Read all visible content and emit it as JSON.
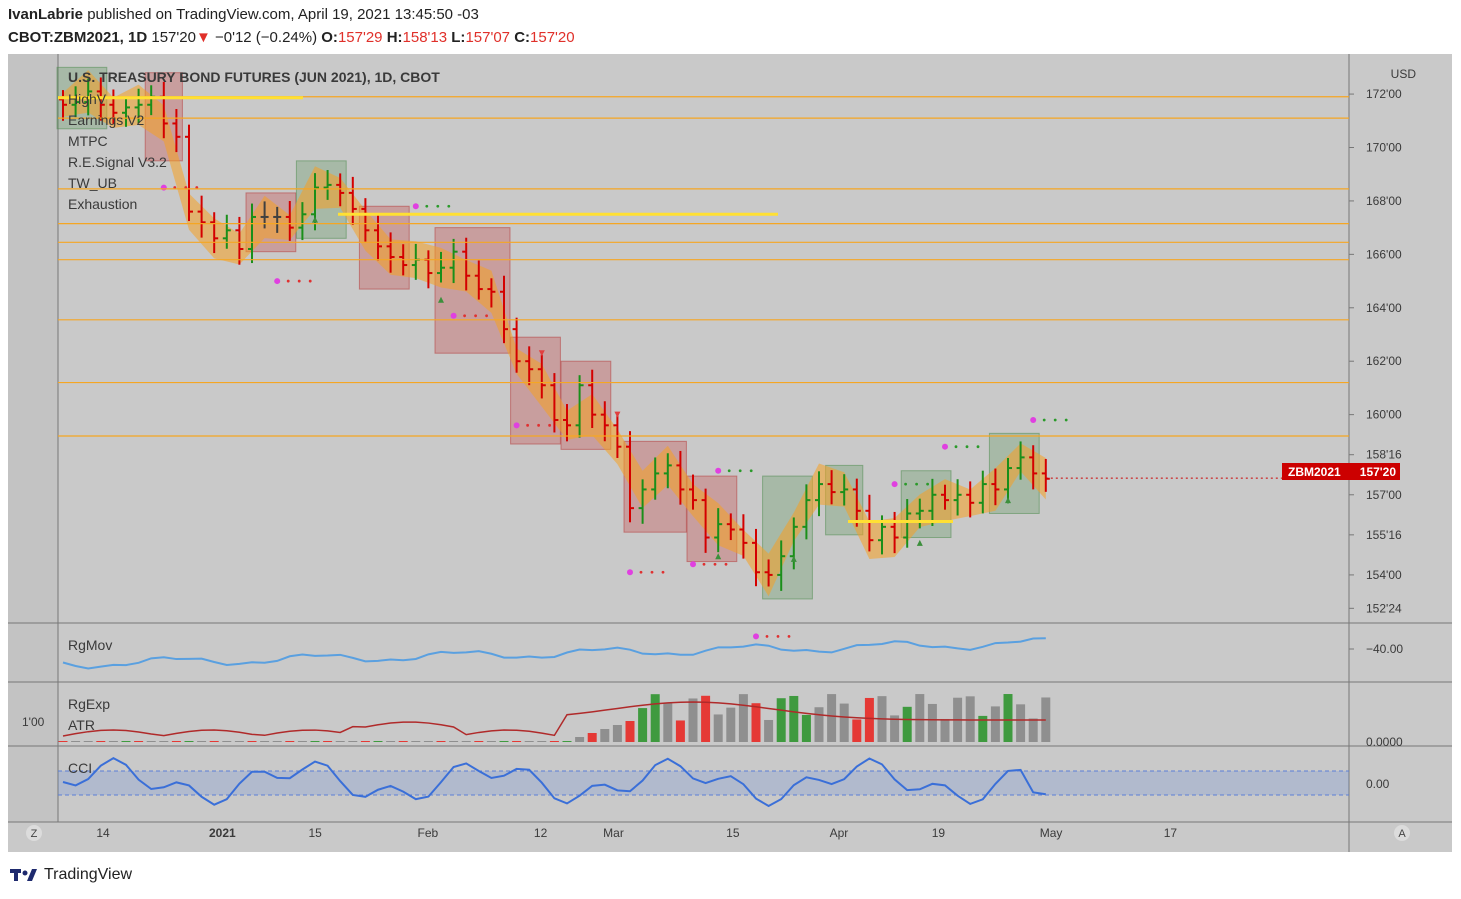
{
  "header": {
    "publisher": "IvanLabrie",
    "published_text": "published on TradingView.com, April 19, 2021 13:45:50 -03",
    "symbol": "CBOT:ZBM2021, 1D",
    "last": "157'20",
    "change": "−0'12 (−0.24%)",
    "o_label": "O:",
    "o_value": "157'29",
    "h_label": "H:",
    "h_value": "158'13",
    "l_label": "L:",
    "l_value": "157'07",
    "c_label": "C:",
    "c_value": "157'20"
  },
  "chart_title": "U.S. TREASURY BOND FUTURES (JUN 2021), 1D, CBOT",
  "indicators": [
    "HighV",
    "Earnings V2",
    "MTPC",
    "R.E.Signal V3.2",
    "TW_UB",
    "Exhaustion"
  ],
  "currency": "USD",
  "price_tag": {
    "symbol": "ZBM2021",
    "value": "157'20"
  },
  "panels": {
    "rgmov": {
      "label": "RgMov",
      "axis_label": "−40.00"
    },
    "rgexp": {
      "label": "RgExp",
      "label2": "ATR",
      "left_label": "1'00",
      "axis_label": "0.0000"
    },
    "cci": {
      "label": "CCI",
      "axis_label": "0.00"
    }
  },
  "nav": {
    "left_button": "Z",
    "right_button": "A"
  },
  "brand": "TradingView",
  "colors": {
    "up": "#1a8f1a",
    "down": "#d40000",
    "neutral": "#404040",
    "orange": "#f5a623",
    "yellow": "#ffe033",
    "blue": "#5aa0e0",
    "cci_blue": "#3a6fd8",
    "atr": "#b02a2a"
  },
  "chart_data": {
    "type": "ohlc",
    "price_axis_ticks": [
      "172'00",
      "170'00",
      "168'00",
      "166'00",
      "164'00",
      "162'00",
      "160'00",
      "158'16",
      "157'00",
      "155'16",
      "154'00",
      "152'24"
    ],
    "price_axis_values": [
      172,
      170,
      168,
      166,
      164,
      162,
      160,
      158.5,
      157,
      155.5,
      154,
      152.75
    ],
    "time_axis_ticks": [
      "14",
      "2021",
      "15",
      "Feb",
      "12",
      "Mar",
      "15",
      "Apr",
      "19",
      "May",
      "17"
    ],
    "time_axis_days": [
      0,
      18,
      32,
      49,
      66,
      77,
      95,
      111,
      126,
      143,
      161
    ],
    "x_unit": "days since Dec 14 2020",
    "ylim": [
      152.2,
      173.5
    ],
    "horizontal_levels": [
      171.9,
      171.1,
      168.45,
      167.15,
      166.45,
      165.8,
      163.55,
      161.2,
      159.2
    ],
    "last_price": 157.625,
    "closes": [
      171.6,
      171.7,
      172.1,
      171.6,
      171.3,
      171.5,
      171.6,
      171.9,
      170.9,
      170.4,
      167.6,
      167.2,
      166.6,
      166.9,
      166.2,
      167.4,
      167.4,
      167.4,
      167.0,
      167.5,
      168.5,
      168.6,
      168.3,
      167.7,
      166.9,
      166.3,
      165.9,
      165.6,
      165.8,
      165.3,
      165.5,
      166.1,
      165.2,
      164.7,
      164.6,
      163.2,
      162.0,
      161.7,
      161.1,
      159.8,
      159.6,
      161.1,
      160.0,
      159.6,
      158.8,
      156.5,
      157.2,
      157.8,
      158.1,
      157.2,
      156.8,
      155.4,
      155.9,
      155.7,
      155.2,
      154.1,
      154.0,
      154.7,
      155.8,
      156.8,
      157.4,
      157.1,
      157.2,
      156.4,
      155.3,
      155.8,
      155.4,
      156.3,
      156.4,
      157.0,
      156.8,
      157.0,
      156.7,
      157.4,
      157.2,
      158.0,
      158.4,
      157.8,
      157.6
    ],
    "volume_bars": 79,
    "atr_last": 1.35,
    "cci_last": -30
  }
}
